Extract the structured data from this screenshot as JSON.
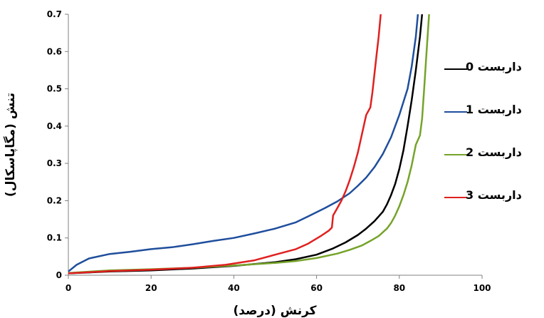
{
  "chart_data": {
    "type": "line",
    "xlabel": "کرنش (درصد)",
    "ylabel": "تنش (مگاپاسکال)",
    "xlim": [
      0,
      100
    ],
    "ylim": [
      0,
      0.7
    ],
    "xticks": [
      "0",
      "20",
      "40",
      "60",
      "80",
      "100"
    ],
    "yticks": [
      "0",
      "0.1",
      "0.2",
      "0.3",
      "0.4",
      "0.5",
      "0.6",
      "0.7"
    ],
    "grid": false,
    "legend_position": "right",
    "series": [
      {
        "name": "داربست 0",
        "color": "#000000",
        "points": [
          [
            0,
            0.005
          ],
          [
            10,
            0.01
          ],
          [
            20,
            0.013
          ],
          [
            30,
            0.018
          ],
          [
            40,
            0.025
          ],
          [
            50,
            0.035
          ],
          [
            55,
            0.043
          ],
          [
            60,
            0.055
          ],
          [
            64,
            0.072
          ],
          [
            67,
            0.088
          ],
          [
            70,
            0.108
          ],
          [
            72,
            0.125
          ],
          [
            74,
            0.145
          ],
          [
            76,
            0.17
          ],
          [
            77,
            0.19
          ],
          [
            78,
            0.215
          ],
          [
            79,
            0.245
          ],
          [
            80,
            0.285
          ],
          [
            81,
            0.335
          ],
          [
            82,
            0.4
          ],
          [
            83,
            0.47
          ],
          [
            84,
            0.55
          ],
          [
            85,
            0.64
          ],
          [
            85.5,
            0.7
          ]
        ]
      },
      {
        "name": "داربست 1",
        "color": "#1f4e9c",
        "points": [
          [
            0,
            0.01
          ],
          [
            2,
            0.028
          ],
          [
            5,
            0.045
          ],
          [
            10,
            0.057
          ],
          [
            15,
            0.063
          ],
          [
            20,
            0.07
          ],
          [
            25,
            0.075
          ],
          [
            30,
            0.083
          ],
          [
            35,
            0.092
          ],
          [
            40,
            0.1
          ],
          [
            45,
            0.112
          ],
          [
            50,
            0.125
          ],
          [
            55,
            0.142
          ],
          [
            58,
            0.158
          ],
          [
            62,
            0.18
          ],
          [
            65,
            0.198
          ],
          [
            68,
            0.22
          ],
          [
            70,
            0.24
          ],
          [
            72,
            0.262
          ],
          [
            74,
            0.29
          ],
          [
            76,
            0.325
          ],
          [
            78,
            0.37
          ],
          [
            80,
            0.43
          ],
          [
            82,
            0.5
          ],
          [
            83,
            0.56
          ],
          [
            84,
            0.64
          ],
          [
            84.5,
            0.7
          ]
        ]
      },
      {
        "name": "داربست 2",
        "color": "#76a32a",
        "points": [
          [
            0,
            0.006
          ],
          [
            10,
            0.013
          ],
          [
            20,
            0.016
          ],
          [
            30,
            0.02
          ],
          [
            40,
            0.026
          ],
          [
            50,
            0.033
          ],
          [
            55,
            0.038
          ],
          [
            60,
            0.046
          ],
          [
            65,
            0.058
          ],
          [
            68,
            0.068
          ],
          [
            71,
            0.08
          ],
          [
            73,
            0.092
          ],
          [
            75,
            0.105
          ],
          [
            77,
            0.125
          ],
          [
            78,
            0.14
          ],
          [
            79,
            0.16
          ],
          [
            80,
            0.185
          ],
          [
            81,
            0.215
          ],
          [
            82,
            0.25
          ],
          [
            83,
            0.295
          ],
          [
            84,
            0.35
          ],
          [
            85,
            0.375
          ],
          [
            85.5,
            0.42
          ],
          [
            86,
            0.5
          ],
          [
            86.6,
            0.6
          ],
          [
            87.2,
            0.7
          ]
        ]
      },
      {
        "name": "داربست 3",
        "color": "#e02020",
        "points": [
          [
            0,
            0.005
          ],
          [
            10,
            0.011
          ],
          [
            20,
            0.015
          ],
          [
            30,
            0.02
          ],
          [
            38,
            0.028
          ],
          [
            45,
            0.04
          ],
          [
            50,
            0.055
          ],
          [
            55,
            0.07
          ],
          [
            58,
            0.085
          ],
          [
            61,
            0.105
          ],
          [
            63,
            0.12
          ],
          [
            63.7,
            0.128
          ],
          [
            64,
            0.16
          ],
          [
            65,
            0.18
          ],
          [
            66,
            0.2
          ],
          [
            67,
            0.225
          ],
          [
            68,
            0.255
          ],
          [
            69,
            0.29
          ],
          [
            70,
            0.33
          ],
          [
            71,
            0.38
          ],
          [
            72,
            0.43
          ],
          [
            73,
            0.45
          ],
          [
            73.5,
            0.49
          ],
          [
            74,
            0.54
          ],
          [
            74.5,
            0.59
          ],
          [
            75,
            0.64
          ],
          [
            75.5,
            0.7
          ]
        ]
      }
    ]
  }
}
